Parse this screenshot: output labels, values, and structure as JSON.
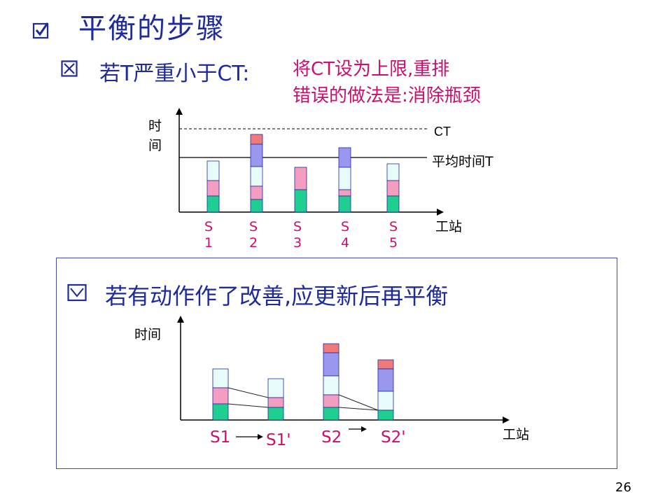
{
  "title": "平衡的步骤",
  "subtitle_prefix": "若T严重小于CT:",
  "subtitle_suffix1": "将CT设为上限,重排",
  "subtitle_suffix2": "错误的做法是:消除瓶颈",
  "chart1": {
    "ylabel": [
      "时",
      "间"
    ],
    "xlabel": "工站",
    "ct_label": "CT",
    "avg_label": "平均时间T",
    "stations": [
      [
        "S",
        "1"
      ],
      [
        "S",
        "2"
      ],
      [
        "S",
        "3"
      ],
      [
        "S",
        "4"
      ],
      [
        "S",
        "5"
      ]
    ]
  },
  "box_title": "若有动作作了改善,应更新后再平衡",
  "chart2": {
    "ylabel": "时间",
    "xlabel": "工站",
    "stations": [
      "S1",
      "S1'",
      "S2",
      "S2'"
    ]
  },
  "page_number": "26",
  "colors": {
    "navy": "#1f2a9c",
    "magenta": "#c8106e",
    "green": "#1fcf8f",
    "pink": "#f59dc0",
    "lightcyan": "#e8fbfb",
    "lavender": "#9a97ee",
    "salmon": "#f07a7a"
  }
}
